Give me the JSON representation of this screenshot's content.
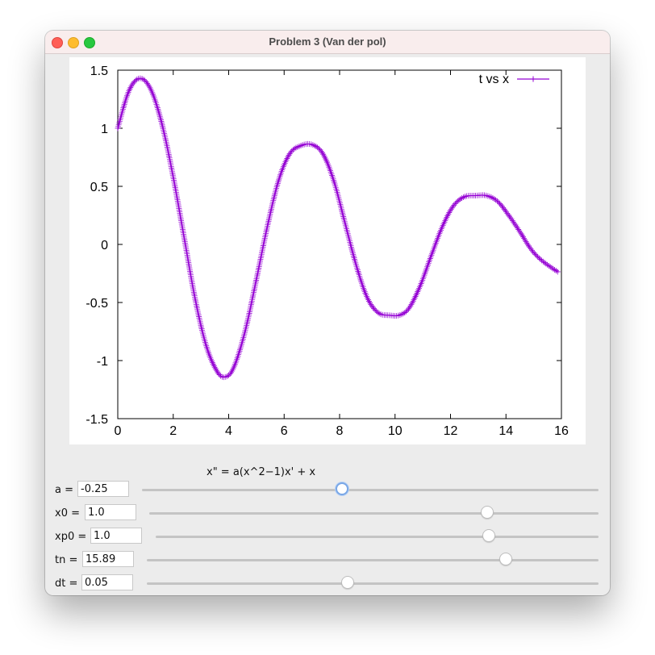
{
  "window": {
    "title": "Problem 3 (Van der pol)"
  },
  "equation": "x\" = a(x^2−1)x' + x",
  "controls": [
    {
      "label": "a =",
      "value": "-0.25",
      "slider_fraction": 0.438,
      "focused": true
    },
    {
      "label": "x0 =",
      "value": "1.0",
      "slider_fraction": 0.753,
      "focused": false
    },
    {
      "label": "xp0 =",
      "value": "1.0",
      "slider_fraction": 0.753,
      "focused": false
    },
    {
      "label": "tn =",
      "value": "15.89",
      "slider_fraction": 0.794,
      "focused": false
    },
    {
      "label": "dt =",
      "value": "0.05",
      "slider_fraction": 0.445,
      "focused": false
    }
  ],
  "colors": {
    "series": "#9400d3",
    "traffic_close": "#ff5f57",
    "traffic_min": "#febc2e",
    "traffic_max": "#28c840"
  },
  "chart_data": {
    "type": "line",
    "marker": "plus",
    "xlim": [
      0,
      16
    ],
    "ylim": [
      -1.5,
      1.5
    ],
    "xticks": [
      0,
      2,
      4,
      6,
      8,
      10,
      12,
      14,
      16
    ],
    "yticks": [
      -1.5,
      -1,
      -0.5,
      0,
      0.5,
      1,
      1.5
    ],
    "legend": "top-right",
    "grid": false,
    "series": [
      {
        "name": "t vs x",
        "x": [
          0,
          0.4,
          0.8,
          1.2,
          1.6,
          2.0,
          2.4,
          2.8,
          3.2,
          3.6,
          3.9,
          4.2,
          4.6,
          5.0,
          5.4,
          5.8,
          6.2,
          6.6,
          7.0,
          7.4,
          7.8,
          8.2,
          8.6,
          9.0,
          9.4,
          9.8,
          10.15,
          10.5,
          10.9,
          11.3,
          11.7,
          12.1,
          12.5,
          12.9,
          13.3,
          13.7,
          14.1,
          14.5,
          14.9,
          15.3,
          15.89
        ],
        "y": [
          1.0,
          1.32,
          1.43,
          1.33,
          1.03,
          0.58,
          0.05,
          -0.48,
          -0.88,
          -1.1,
          -1.14,
          -1.05,
          -0.74,
          -0.3,
          0.16,
          0.55,
          0.78,
          0.85,
          0.86,
          0.78,
          0.54,
          0.18,
          -0.18,
          -0.46,
          -0.59,
          -0.61,
          -0.61,
          -0.55,
          -0.36,
          -0.1,
          0.15,
          0.33,
          0.41,
          0.42,
          0.42,
          0.37,
          0.25,
          0.11,
          -0.04,
          -0.14,
          -0.24
        ]
      }
    ]
  }
}
